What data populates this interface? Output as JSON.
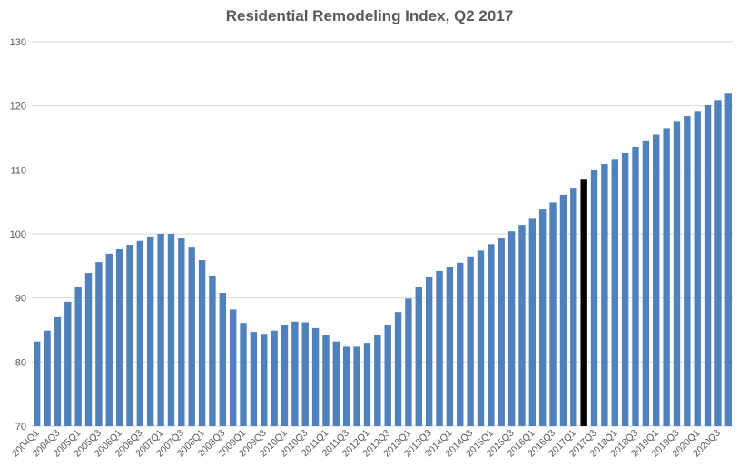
{
  "chart_data": {
    "type": "bar",
    "title": "Residential Remodeling Index, Q2 2017",
    "xlabel": "",
    "ylabel": "",
    "ylim": [
      70,
      130
    ],
    "yticks": [
      70,
      80,
      90,
      100,
      110,
      120,
      130
    ],
    "grid": true,
    "bar_color": "#4F81BD",
    "highlight_color": "#000000",
    "highlight_category": "2017Q2",
    "label_every": 2,
    "categories": [
      "2004Q1",
      "2004Q2",
      "2004Q3",
      "2004Q4",
      "2005Q1",
      "2005Q2",
      "2005Q3",
      "2005Q4",
      "2006Q1",
      "2006Q2",
      "2006Q3",
      "2006Q4",
      "2007Q1",
      "2007Q2",
      "2007Q3",
      "2007Q4",
      "2008Q1",
      "2008Q2",
      "2008Q3",
      "2008Q4",
      "2009Q1",
      "2009Q2",
      "2009Q3",
      "2009Q4",
      "2010Q1",
      "2010Q2",
      "2010Q3",
      "2010Q4",
      "2011Q1",
      "2011Q2",
      "2011Q3",
      "2011Q4",
      "2012Q1",
      "2012Q2",
      "2012Q3",
      "2012Q4",
      "2013Q1",
      "2013Q2",
      "2013Q3",
      "2013Q4",
      "2014Q1",
      "2014Q2",
      "2014Q3",
      "2014Q4",
      "2015Q1",
      "2015Q2",
      "2015Q3",
      "2015Q4",
      "2016Q1",
      "2016Q2",
      "2016Q3",
      "2016Q4",
      "2017Q1",
      "2017Q2",
      "2017Q3",
      "2017Q4",
      "2018Q1",
      "2018Q2",
      "2018Q3",
      "2018Q4",
      "2019Q1",
      "2019Q2",
      "2019Q3",
      "2019Q4",
      "2020Q1",
      "2020Q2",
      "2020Q3",
      "2020Q4"
    ],
    "values": [
      83.2,
      84.9,
      87.0,
      89.4,
      91.8,
      93.9,
      95.6,
      96.9,
      97.6,
      98.3,
      98.9,
      99.6,
      100.0,
      100.0,
      99.3,
      98.0,
      95.9,
      93.5,
      90.8,
      88.2,
      86.1,
      84.7,
      84.4,
      84.9,
      85.7,
      86.3,
      86.2,
      85.3,
      84.2,
      83.2,
      82.4,
      82.4,
      83.0,
      84.2,
      85.7,
      87.8,
      89.9,
      91.7,
      93.2,
      94.2,
      94.8,
      95.5,
      96.5,
      97.4,
      98.4,
      99.3,
      100.4,
      101.4,
      102.5,
      103.8,
      104.9,
      106.1,
      107.2,
      108.6,
      109.9,
      110.9,
      111.7,
      112.6,
      113.6,
      114.6,
      115.5,
      116.5,
      117.5,
      118.4,
      119.2,
      120.1,
      120.9,
      121.9
    ]
  }
}
